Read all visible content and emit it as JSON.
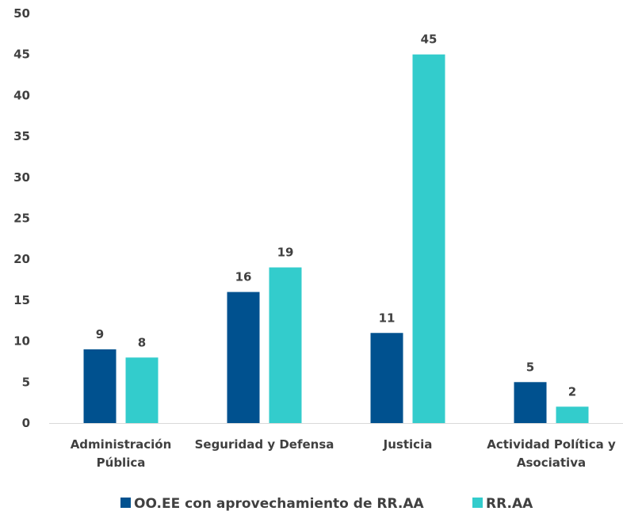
{
  "chart_data": {
    "type": "bar",
    "title": "",
    "xlabel": "",
    "ylabel": "",
    "ylim": [
      0,
      50
    ],
    "yticks": [
      0,
      5,
      10,
      15,
      20,
      25,
      30,
      35,
      40,
      45,
      50
    ],
    "grid": false,
    "legend_position": "bottom",
    "categories": [
      [
        "Administración",
        "Pública"
      ],
      [
        "Seguridad y Defensa"
      ],
      [
        "Justicia"
      ],
      [
        "Actividad Política y",
        "Asociativa"
      ]
    ],
    "series": [
      {
        "name": "OO.EE con aprovechamiento de RR.AA",
        "color": "#00518f",
        "values": [
          9,
          16,
          11,
          5
        ]
      },
      {
        "name": "RR.AA",
        "color": "#33cccc",
        "values": [
          8,
          19,
          45,
          2
        ]
      }
    ],
    "axis_color": "#d9d9d9",
    "text_color": "#404040"
  }
}
